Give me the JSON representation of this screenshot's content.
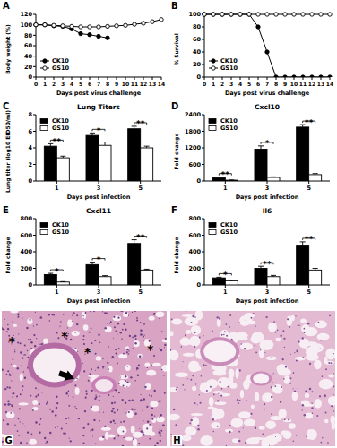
{
  "chart_data": [
    {
      "type": "line",
      "label": "A",
      "xlabel": "Days post virus challenge",
      "ylabel": "Body weight (%)",
      "x": [
        0,
        1,
        2,
        3,
        4,
        5,
        6,
        7,
        8,
        9,
        10,
        11,
        12,
        13,
        14
      ],
      "xlim": [
        0,
        14
      ],
      "xticks": [
        0,
        1,
        2,
        3,
        4,
        5,
        6,
        7,
        8,
        9,
        10,
        11,
        12,
        13,
        14
      ],
      "ylim": [
        0,
        120
      ],
      "yticks": [
        0,
        20,
        40,
        60,
        80,
        100,
        120
      ],
      "legend": "lower left",
      "series": [
        {
          "name": "CK10",
          "color": "#000000",
          "marker": "circle",
          "values": [
            100,
            100,
            98,
            97,
            92,
            83,
            81,
            78,
            75,
            null,
            null,
            null,
            null,
            null,
            null
          ]
        },
        {
          "name": "GS10",
          "color": "#000000",
          "marker": "open_circle",
          "values": [
            100,
            100,
            99,
            98,
            97,
            96,
            96,
            96,
            97,
            98,
            99,
            101,
            103,
            106,
            110
          ]
        }
      ]
    },
    {
      "type": "line",
      "label": "B",
      "xlabel": "Days post virus challenge",
      "ylabel": "% Survival",
      "x": [
        0,
        1,
        2,
        3,
        4,
        5,
        6,
        7,
        8,
        9,
        10,
        11,
        12,
        13,
        14
      ],
      "xlim": [
        0,
        14
      ],
      "xticks": [
        0,
        1,
        2,
        3,
        4,
        5,
        6,
        7,
        8,
        9,
        10,
        11,
        12,
        13,
        14
      ],
      "ylim": [
        0,
        100
      ],
      "yticks": [
        0,
        20,
        40,
        60,
        80,
        100
      ],
      "legend": "lower left",
      "series": [
        {
          "name": "CK10",
          "color": "#000000",
          "marker": "circle",
          "values": [
            100,
            100,
            100,
            100,
            100,
            100,
            80,
            40,
            0,
            0,
            0,
            0,
            0,
            0,
            0
          ]
        },
        {
          "name": "GS10",
          "color": "#000000",
          "marker": "open_circle",
          "values": [
            100,
            100,
            100,
            100,
            100,
            100,
            100,
            100,
            100,
            100,
            100,
            100,
            100,
            100,
            100
          ]
        }
      ]
    },
    {
      "type": "bar",
      "label": "C",
      "title": "Lung Titers",
      "xlabel": "Days post infection",
      "ylabel": "Lung titer (log10 EID50/ml)",
      "categories": [
        "1",
        "3",
        "5"
      ],
      "ylim": [
        0,
        8
      ],
      "yticks": [
        0,
        2,
        4,
        6,
        8
      ],
      "legend": "upper left",
      "annotations": [
        "**",
        "*",
        "**"
      ],
      "series": [
        {
          "name": "CK10",
          "color": "#000000",
          "values": [
            4.2,
            5.5,
            6.3
          ],
          "errors": [
            0.3,
            0.3,
            0.3
          ]
        },
        {
          "name": "GS10",
          "color": "#ffffff",
          "values": [
            2.8,
            4.3,
            4.0
          ],
          "errors": [
            0.2,
            0.4,
            0.2
          ]
        }
      ]
    },
    {
      "type": "bar",
      "label": "D",
      "title": "Cxcl10",
      "xlabel": "Days post infection",
      "ylabel": "Fold change",
      "categories": [
        "1",
        "3",
        "5"
      ],
      "ylim": [
        0,
        2400
      ],
      "yticks": [
        0,
        600,
        1200,
        1800,
        2400
      ],
      "legend": "upper left",
      "annotations": [
        "**",
        "*",
        "**"
      ],
      "series": [
        {
          "name": "CK10",
          "color": "#000000",
          "values": [
            120,
            1150,
            1950
          ],
          "errors": [
            20,
            120,
            90
          ]
        },
        {
          "name": "GS10",
          "color": "#ffffff",
          "values": [
            30,
            130,
            230
          ],
          "errors": [
            8,
            20,
            40
          ]
        }
      ]
    },
    {
      "type": "bar",
      "label": "E",
      "title": "Cxcl11",
      "xlabel": "Days post infection",
      "ylabel": "Fold change",
      "categories": [
        "1",
        "3",
        "5"
      ],
      "ylim": [
        0,
        800
      ],
      "yticks": [
        0,
        200,
        400,
        600,
        800
      ],
      "legend": "upper left",
      "annotations": [
        "*",
        "*",
        "**"
      ],
      "series": [
        {
          "name": "CK10",
          "color": "#000000",
          "values": [
            125,
            245,
            500
          ],
          "errors": [
            15,
            30,
            45
          ]
        },
        {
          "name": "GS10",
          "color": "#ffffff",
          "values": [
            35,
            100,
            180
          ],
          "errors": [
            5,
            12,
            10
          ]
        }
      ]
    },
    {
      "type": "bar",
      "label": "F",
      "title": "Il6",
      "xlabel": "Days post infection",
      "ylabel": "Fold change",
      "categories": [
        "1",
        "3",
        "5"
      ],
      "ylim": [
        0,
        800
      ],
      "yticks": [
        0,
        200,
        400,
        600,
        800
      ],
      "legend": "upper left",
      "annotations": [
        "*",
        "**",
        "**"
      ],
      "series": [
        {
          "name": "CK10",
          "color": "#000000",
          "values": [
            85,
            200,
            480
          ],
          "errors": [
            8,
            25,
            40
          ]
        },
        {
          "name": "GS10",
          "color": "#ffffff",
          "values": [
            50,
            100,
            180
          ],
          "errors": [
            6,
            15,
            20
          ]
        }
      ]
    }
  ],
  "images": [
    {
      "label": "G",
      "annotations": [
        "*",
        "*",
        "*",
        "*"
      ]
    },
    {
      "label": "H"
    }
  ]
}
